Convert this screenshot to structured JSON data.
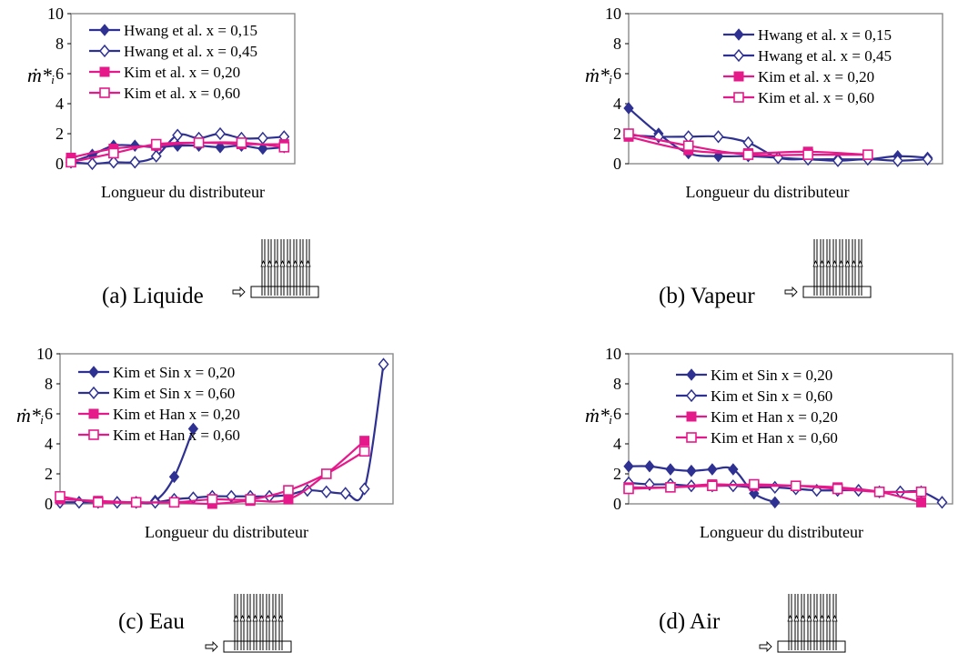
{
  "ylabel": "ṁ*ᵢ",
  "xlabel": "Longueur du distributeur",
  "chart_data": [
    {
      "type": "line",
      "caption": "(a) Liquide",
      "xlabel": "Longueur du distributeur",
      "ylabel": "ṁ*ᵢ",
      "ylim": [
        0,
        10
      ],
      "yticks": [
        0,
        2,
        4,
        6,
        8,
        10
      ],
      "grid": false,
      "legend": "top-left",
      "series": [
        {
          "name": "Hwang et al. x = 0,15",
          "color": "#2e3192",
          "marker": "diamond-filled",
          "x": [
            1,
            2,
            3,
            4,
            5,
            6,
            7,
            8,
            9,
            10,
            11
          ],
          "y": [
            0.1,
            0.6,
            1.2,
            1.2,
            1.1,
            1.2,
            1.2,
            1.1,
            1.2,
            1.0,
            1.1
          ]
        },
        {
          "name": "Hwang et al. x = 0,45",
          "color": "#2e3192",
          "marker": "diamond-open",
          "x": [
            1,
            2,
            3,
            4,
            5,
            6,
            7,
            8,
            9,
            10,
            11
          ],
          "y": [
            0.1,
            0.0,
            0.1,
            0.1,
            0.5,
            1.9,
            1.7,
            2.0,
            1.7,
            1.7,
            1.8
          ]
        },
        {
          "name": "Kim et al. x = 0,20",
          "color": "#e6198b",
          "marker": "square-filled",
          "x": [
            1,
            3,
            5,
            7,
            9,
            11
          ],
          "y": [
            0.4,
            1.0,
            1.2,
            1.4,
            1.3,
            1.3
          ]
        },
        {
          "name": "Kim et al. x = 0,60",
          "color": "#e6198b",
          "marker": "square-open",
          "x": [
            1,
            3,
            5,
            7,
            9,
            11
          ],
          "y": [
            0.1,
            0.7,
            1.3,
            1.4,
            1.4,
            1.1
          ]
        }
      ]
    },
    {
      "type": "line",
      "caption": "(b) Vapeur",
      "xlabel": "Longueur du distributeur",
      "ylabel": "ṁ*ᵢ",
      "ylim": [
        0,
        10
      ],
      "yticks": [
        0,
        2,
        4,
        6,
        8,
        10
      ],
      "grid": false,
      "legend": "top-right",
      "series": [
        {
          "name": "Hwang et al. x = 0,15",
          "color": "#2e3192",
          "marker": "diamond-filled",
          "x": [
            1,
            2,
            3,
            4,
            5,
            6,
            7,
            8,
            9,
            10,
            11
          ],
          "y": [
            3.7,
            2.0,
            0.7,
            0.5,
            0.5,
            0.4,
            0.3,
            0.3,
            0.3,
            0.5,
            0.4
          ]
        },
        {
          "name": "Hwang et al. x = 0,45",
          "color": "#2e3192",
          "marker": "diamond-open",
          "x": [
            1,
            2,
            3,
            4,
            5,
            6,
            7,
            8,
            9,
            10,
            11
          ],
          "y": [
            1.9,
            1.8,
            1.8,
            1.8,
            1.4,
            0.4,
            0.3,
            0.2,
            0.3,
            0.2,
            0.3
          ]
        },
        {
          "name": "Kim et al. x = 0,20",
          "color": "#e6198b",
          "marker": "square-filled",
          "x": [
            1,
            3,
            5,
            7,
            9
          ],
          "y": [
            1.8,
            0.9,
            0.7,
            0.8,
            0.6
          ]
        },
        {
          "name": "Kim et al. x = 0,60",
          "color": "#e6198b",
          "marker": "square-open",
          "x": [
            1,
            3,
            5,
            7,
            9
          ],
          "y": [
            2.0,
            1.2,
            0.6,
            0.6,
            0.6
          ]
        }
      ]
    },
    {
      "type": "line",
      "caption": "(c) Eau",
      "xlabel": "Longueur du distributeur",
      "ylabel": "ṁ*ᵢ",
      "ylim": [
        0,
        10
      ],
      "yticks": [
        0,
        2,
        4,
        6,
        8,
        10
      ],
      "grid": false,
      "legend": "top-left",
      "series": [
        {
          "name": "Kim et Sin x = 0,20",
          "color": "#2e3192",
          "marker": "diamond-filled",
          "x": [
            1,
            2,
            3,
            4,
            5,
            6,
            7,
            8
          ],
          "y": [
            0.1,
            0.1,
            0.1,
            0.1,
            0.1,
            0.2,
            1.8,
            5.0
          ]
        },
        {
          "name": "Kim et Sin x = 0,60",
          "color": "#2e3192",
          "marker": "diamond-open",
          "x": [
            1,
            2,
            3,
            4,
            5,
            6,
            7,
            8,
            9,
            10,
            11,
            12,
            13,
            14,
            15,
            16,
            17,
            18
          ],
          "y": [
            0.1,
            0.1,
            0.1,
            0.1,
            0.1,
            0.1,
            0.3,
            0.4,
            0.5,
            0.5,
            0.5,
            0.5,
            0.6,
            0.9,
            0.8,
            0.7,
            1.0,
            9.3
          ]
        },
        {
          "name": "Kim et Han x = 0,20",
          "color": "#e6198b",
          "marker": "square-filled",
          "x": [
            1,
            3,
            5,
            7,
            9,
            11,
            13,
            15,
            17
          ],
          "y": [
            0.3,
            0.2,
            0.1,
            0.1,
            0.0,
            0.2,
            0.3,
            2.0,
            4.2
          ]
        },
        {
          "name": "Kim et Han x = 0,60",
          "color": "#e6198b",
          "marker": "square-open",
          "x": [
            1,
            3,
            5,
            7,
            9,
            11,
            13,
            15,
            17
          ],
          "y": [
            0.5,
            0.1,
            0.1,
            0.1,
            0.3,
            0.3,
            0.9,
            2.0,
            3.5
          ]
        }
      ]
    },
    {
      "type": "line",
      "caption": "(d) Air",
      "xlabel": "Longueur du distributeur",
      "ylabel": "ṁ*ᵢ",
      "ylim": [
        0,
        10
      ],
      "yticks": [
        0,
        2,
        4,
        6,
        8,
        10
      ],
      "grid": false,
      "legend": "top-right",
      "series": [
        {
          "name": "Kim et Sin x = 0,20",
          "color": "#2e3192",
          "marker": "diamond-filled",
          "x": [
            1,
            2,
            3,
            4,
            5,
            6,
            7,
            8
          ],
          "y": [
            2.5,
            2.5,
            2.3,
            2.2,
            2.3,
            2.3,
            0.7,
            0.1
          ]
        },
        {
          "name": "Kim et Sin x = 0,60",
          "color": "#2e3192",
          "marker": "diamond-open",
          "x": [
            1,
            2,
            3,
            4,
            5,
            6,
            7,
            8,
            9,
            10,
            11,
            12,
            13,
            14,
            15,
            16
          ],
          "y": [
            1.4,
            1.3,
            1.3,
            1.2,
            1.2,
            1.2,
            1.1,
            1.1,
            1.0,
            0.9,
            0.9,
            0.9,
            0.8,
            0.8,
            0.8,
            0.1
          ]
        },
        {
          "name": "Kim et Han x = 0,20",
          "color": "#e6198b",
          "marker": "square-filled",
          "x": [
            1,
            3,
            5,
            7,
            9,
            11,
            13,
            15
          ],
          "y": [
            1.1,
            1.1,
            1.3,
            1.2,
            1.2,
            1.1,
            0.8,
            0.1
          ]
        },
        {
          "name": "Kim et Han x = 0,60",
          "color": "#e6198b",
          "marker": "square-open",
          "x": [
            1,
            3,
            5,
            7,
            9,
            11,
            13,
            15
          ],
          "y": [
            1.0,
            1.1,
            1.2,
            1.3,
            1.2,
            1.0,
            0.8,
            0.8
          ]
        }
      ]
    }
  ]
}
